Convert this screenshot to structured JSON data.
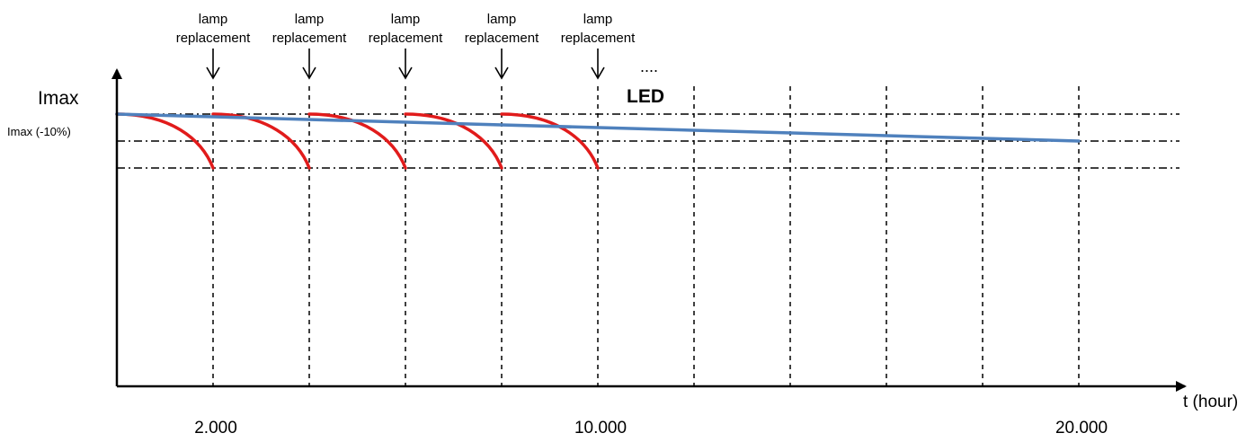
{
  "chart_data": {
    "type": "line",
    "title": "",
    "xlabel": "t (hour)",
    "ylabel": "",
    "x_ticks": [
      {
        "value": 2000,
        "label": "2.000"
      },
      {
        "value": 10000,
        "label": "10.000"
      },
      {
        "value": 20000,
        "label": "20.000"
      }
    ],
    "y_levels": [
      {
        "label": "Imax",
        "value": 1.0
      },
      {
        "label": "Imax (-10%)",
        "value": 0.9
      },
      {
        "label": "",
        "value": 0.8
      }
    ],
    "xlim": [
      0,
      22000
    ],
    "replacement_marks": [
      2000,
      4000,
      6000,
      8000,
      10000
    ],
    "grid_x": [
      2000,
      4000,
      6000,
      8000,
      10000,
      12000,
      14000,
      16000,
      18000,
      20000
    ],
    "annotation": {
      "line1": "lamp",
      "line2": "replacement"
    },
    "ellipsis": "....",
    "series": [
      {
        "name": "LED",
        "color": "#4f81bd",
        "x": [
          0,
          20000
        ],
        "y": [
          1.0,
          0.9
        ]
      },
      {
        "name": "",
        "color": "#e11b1b",
        "segments": [
          [
            0,
            2000
          ],
          [
            2000,
            4000
          ],
          [
            4000,
            6000
          ],
          [
            6000,
            8000
          ],
          [
            8000,
            10000
          ]
        ],
        "start_y": 1.0,
        "end_y": 0.8
      }
    ]
  }
}
